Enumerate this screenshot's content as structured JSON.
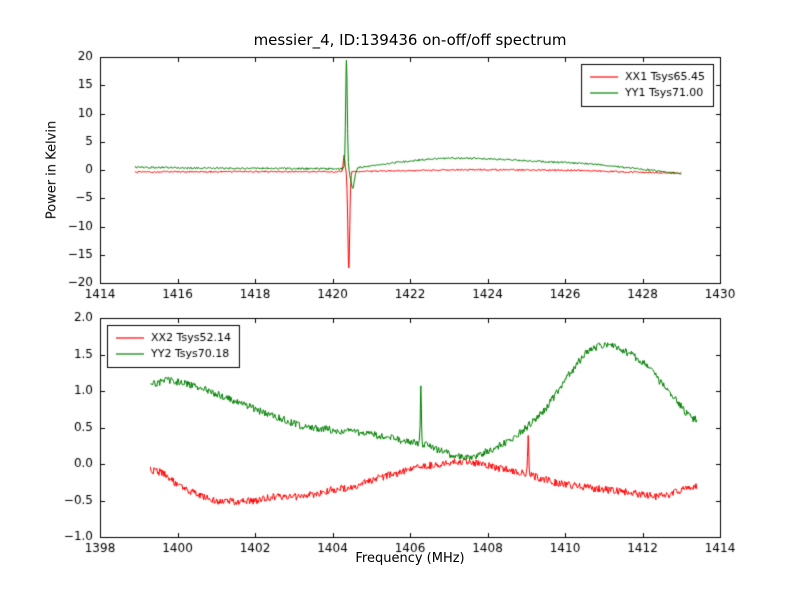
{
  "figure": {
    "title": "messier_4, ID:139436 on-off/off spectrum",
    "background": "#ffffff",
    "frame_color": "#000000"
  },
  "chart_data": [
    {
      "type": "line",
      "title": "messier_4, ID:139436 on-off/off spectrum",
      "xlabel": "",
      "ylabel": "Power in Kelvin",
      "xlim": [
        1414,
        1430
      ],
      "ylim": [
        -20,
        20
      ],
      "grid": false,
      "xticks": [
        1414,
        1416,
        1418,
        1420,
        1422,
        1424,
        1426,
        1428,
        1430
      ],
      "xtick_labels": [
        "1414",
        "1416",
        "1418",
        "1420",
        "1422",
        "1424",
        "1426",
        "1428",
        "1430"
      ],
      "yticks": [
        -20,
        -15,
        -10,
        -5,
        0,
        5,
        10,
        15,
        20
      ],
      "ytick_labels": [
        "−20",
        "−15",
        "−10",
        "−5",
        "0",
        "5",
        "10",
        "15",
        "20"
      ],
      "seed": 11,
      "legend": {
        "position": "upper right",
        "entries": [
          {
            "label": "XX1 Tsys65.45",
            "color": "#ff0000"
          },
          {
            "label": "YY1 Tsys71.00",
            "color": "#008000"
          }
        ]
      },
      "series": [
        {
          "name": "XX1",
          "color": "#ff0000",
          "x_range": [
            1414.9,
            1429.0
          ],
          "noise": 0.14,
          "anchors": [
            [
              1414.9,
              -0.35
            ],
            [
              1416,
              -0.3
            ],
            [
              1417,
              -0.3
            ],
            [
              1418,
              -0.27
            ],
            [
              1419,
              -0.27
            ],
            [
              1420.1,
              -0.3
            ],
            [
              1420.8,
              -0.25
            ],
            [
              1421.5,
              -0.15
            ],
            [
              1422.5,
              -0.05
            ],
            [
              1423.5,
              0.05
            ],
            [
              1424.5,
              0.05
            ],
            [
              1425.5,
              -0.02
            ],
            [
              1426.5,
              -0.1
            ],
            [
              1427.5,
              -0.3
            ],
            [
              1428.5,
              -0.5
            ],
            [
              1429,
              -0.55
            ]
          ],
          "spikes": [
            {
              "x": 1420.3,
              "amp": 2.8,
              "w": 0.03
            },
            {
              "x": 1420.42,
              "amp": -17.0,
              "w": 0.035
            }
          ]
        },
        {
          "name": "YY1",
          "color": "#008000",
          "x_range": [
            1414.9,
            1429.0
          ],
          "noise": 0.16,
          "anchors": [
            [
              1414.9,
              0.5
            ],
            [
              1415.5,
              0.45
            ],
            [
              1416.5,
              0.35
            ],
            [
              1417.5,
              0.3
            ],
            [
              1418.5,
              0.3
            ],
            [
              1419.5,
              0.25
            ],
            [
              1420.2,
              0.2
            ],
            [
              1420.9,
              0.6
            ],
            [
              1421.5,
              1.2
            ],
            [
              1422.3,
              1.8
            ],
            [
              1423,
              2.1
            ],
            [
              1423.8,
              2.05
            ],
            [
              1424.5,
              1.85
            ],
            [
              1425.5,
              1.45
            ],
            [
              1426.3,
              1.25
            ],
            [
              1427,
              0.85
            ],
            [
              1428,
              0.15
            ],
            [
              1428.6,
              -0.35
            ],
            [
              1429,
              -0.6
            ]
          ],
          "spikes": [
            {
              "x": 1420.36,
              "amp": 19.2,
              "w": 0.03
            },
            {
              "x": 1420.52,
              "amp": -3.6,
              "w": 0.07
            }
          ]
        }
      ]
    },
    {
      "type": "line",
      "title": "",
      "xlabel": "Frequency (MHz)",
      "ylabel": "",
      "xlim": [
        1398,
        1414
      ],
      "ylim": [
        -1.0,
        2.0
      ],
      "grid": false,
      "xticks": [
        1398,
        1400,
        1402,
        1404,
        1406,
        1408,
        1410,
        1412,
        1414
      ],
      "xtick_labels": [
        "1398",
        "1400",
        "1402",
        "1404",
        "1406",
        "1408",
        "1410",
        "1412",
        "1414"
      ],
      "yticks": [
        -1.0,
        -0.5,
        0.0,
        0.5,
        1.0,
        1.5,
        2.0
      ],
      "ytick_labels": [
        "−1.0",
        "−0.5",
        "0.0",
        "0.5",
        "1.0",
        "1.5",
        "2.0"
      ],
      "seed": 23,
      "legend": {
        "position": "upper left",
        "entries": [
          {
            "label": "XX2 Tsys52.14",
            "color": "#ff0000"
          },
          {
            "label": "YY2 Tsys70.18",
            "color": "#008000"
          }
        ]
      },
      "series": [
        {
          "name": "XX2",
          "color": "#ff0000",
          "x_range": [
            1399.3,
            1413.4
          ],
          "noise": 0.05,
          "anchors": [
            [
              1399.3,
              -0.08
            ],
            [
              1399.6,
              -0.12
            ],
            [
              1400,
              -0.28
            ],
            [
              1400.5,
              -0.42
            ],
            [
              1401,
              -0.5
            ],
            [
              1401.5,
              -0.52
            ],
            [
              1402,
              -0.5
            ],
            [
              1402.5,
              -0.45
            ],
            [
              1403,
              -0.45
            ],
            [
              1403.5,
              -0.42
            ],
            [
              1404,
              -0.35
            ],
            [
              1404.5,
              -0.32
            ],
            [
              1405,
              -0.22
            ],
            [
              1405.5,
              -0.15
            ],
            [
              1406,
              -0.08
            ],
            [
              1406.5,
              -0.02
            ],
            [
              1407,
              0.02
            ],
            [
              1407.5,
              0.03
            ],
            [
              1408,
              -0.02
            ],
            [
              1408.5,
              -0.08
            ],
            [
              1409,
              -0.13
            ],
            [
              1409.5,
              -0.22
            ],
            [
              1410,
              -0.28
            ],
            [
              1410.5,
              -0.32
            ],
            [
              1411,
              -0.35
            ],
            [
              1411.5,
              -0.38
            ],
            [
              1412,
              -0.42
            ],
            [
              1412.4,
              -0.45
            ],
            [
              1412.8,
              -0.4
            ],
            [
              1413.1,
              -0.33
            ],
            [
              1413.4,
              -0.3
            ]
          ],
          "spikes": [
            {
              "x": 1409.05,
              "amp": 0.5,
              "w": 0.02
            }
          ]
        },
        {
          "name": "YY2",
          "color": "#008000",
          "x_range": [
            1399.3,
            1413.4
          ],
          "noise": 0.05,
          "anchors": [
            [
              1399.3,
              1.08
            ],
            [
              1399.7,
              1.15
            ],
            [
              1400.2,
              1.1
            ],
            [
              1400.8,
              1.0
            ],
            [
              1401.3,
              0.9
            ],
            [
              1402,
              0.75
            ],
            [
              1402.7,
              0.62
            ],
            [
              1403.2,
              0.52
            ],
            [
              1403.8,
              0.48
            ],
            [
              1404.3,
              0.45
            ],
            [
              1404.8,
              0.42
            ],
            [
              1405.3,
              0.38
            ],
            [
              1405.8,
              0.32
            ],
            [
              1406.3,
              0.28
            ],
            [
              1406.8,
              0.18
            ],
            [
              1407.2,
              0.1
            ],
            [
              1407.6,
              0.1
            ],
            [
              1408,
              0.17
            ],
            [
              1408.5,
              0.3
            ],
            [
              1409,
              0.5
            ],
            [
              1409.5,
              0.75
            ],
            [
              1410,
              1.15
            ],
            [
              1410.5,
              1.5
            ],
            [
              1410.9,
              1.63
            ],
            [
              1411.3,
              1.62
            ],
            [
              1411.7,
              1.5
            ],
            [
              1412.1,
              1.35
            ],
            [
              1412.5,
              1.1
            ],
            [
              1412.9,
              0.85
            ],
            [
              1413.2,
              0.65
            ],
            [
              1413.4,
              0.6
            ]
          ],
          "spikes": [
            {
              "x": 1406.28,
              "amp": 0.75,
              "w": 0.02
            }
          ]
        }
      ]
    }
  ]
}
